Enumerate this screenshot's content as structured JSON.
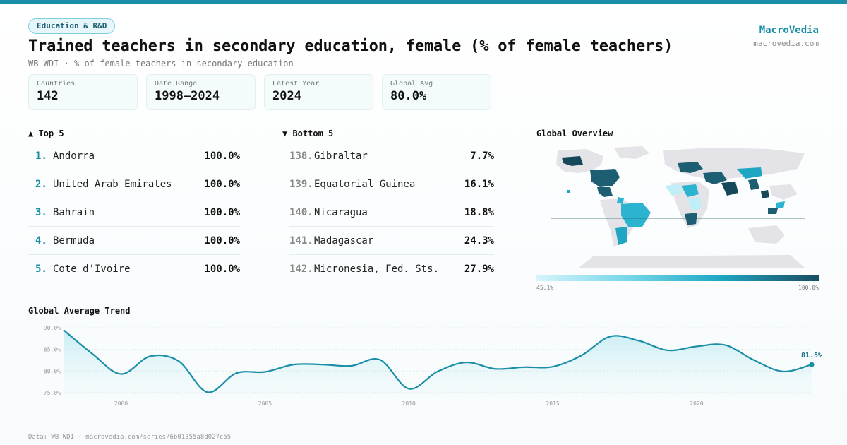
{
  "header": {
    "category_badge": "Education & R&D",
    "title": "Trained teachers in secondary education, female (% of female teachers)",
    "subtitle": "WB WDI · % of female teachers in secondary education",
    "brand_name": "MacroVedia",
    "brand_url": "macrovedia.com"
  },
  "stats": [
    {
      "label": "Countries",
      "value": "142"
    },
    {
      "label": "Date Range",
      "value": "1998–2024"
    },
    {
      "label": "Latest Year",
      "value": "2024"
    },
    {
      "label": "Global Avg",
      "value": "80.0%"
    }
  ],
  "top5": {
    "title": "▲ Top 5",
    "items": [
      {
        "rank": "1.",
        "name": "Andorra",
        "value": "100.0%"
      },
      {
        "rank": "2.",
        "name": "United Arab Emirates",
        "value": "100.0%"
      },
      {
        "rank": "3.",
        "name": "Bahrain",
        "value": "100.0%"
      },
      {
        "rank": "4.",
        "name": "Bermuda",
        "value": "100.0%"
      },
      {
        "rank": "5.",
        "name": "Cote d'Ivoire",
        "value": "100.0%"
      }
    ]
  },
  "bottom5": {
    "title": "▼ Bottom 5",
    "items": [
      {
        "rank": "138.",
        "name": "Gibraltar",
        "value": "7.7%"
      },
      {
        "rank": "139.",
        "name": "Equatorial Guinea",
        "value": "16.1%"
      },
      {
        "rank": "140.",
        "name": "Nicaragua",
        "value": "18.8%"
      },
      {
        "rank": "141.",
        "name": "Madagascar",
        "value": "24.3%"
      },
      {
        "rank": "142.",
        "name": "Micronesia, Fed. Sts.",
        "value": "27.9%"
      }
    ]
  },
  "map": {
    "title": "Global Overview",
    "legend_min": "45.1%",
    "legend_max": "100.0%",
    "colors": {
      "land": "#e4e4e8",
      "low": "#bfeef7",
      "mid": "#2bb3cf",
      "high": "#1d5e73",
      "top": "#16485a"
    }
  },
  "trend": {
    "title": "Global Average Trend",
    "last_label": "81.5%"
  },
  "footer": "Data: WB WDI · macrovedia.com/series/6b01355a8d027c55",
  "chart_data": {
    "type": "area",
    "title": "Global Average Trend",
    "x": [
      1998,
      1999,
      2000,
      2001,
      2002,
      2003,
      2004,
      2005,
      2006,
      2007,
      2008,
      2009,
      2010,
      2011,
      2012,
      2013,
      2014,
      2015,
      2016,
      2017,
      2018,
      2019,
      2020,
      2021,
      2022,
      2023,
      2024
    ],
    "values": [
      89.5,
      84.0,
      79.3,
      83.4,
      82.3,
      75.1,
      79.5,
      79.8,
      81.5,
      81.5,
      81.2,
      82.6,
      75.9,
      79.9,
      82.0,
      80.5,
      80.9,
      81.0,
      83.6,
      88.0,
      87.0,
      84.8,
      85.7,
      86.0,
      82.5,
      79.9,
      81.5
    ],
    "x_ticks": [
      "2000",
      "2005",
      "2010",
      "2015",
      "2020"
    ],
    "y_ticks": [
      "75.0%",
      "80.0%",
      "85.0%",
      "90.0%"
    ],
    "ylim": [
      74,
      91
    ],
    "xlim": [
      1998,
      2024
    ],
    "grid": true,
    "color": "#1a8ea6"
  }
}
